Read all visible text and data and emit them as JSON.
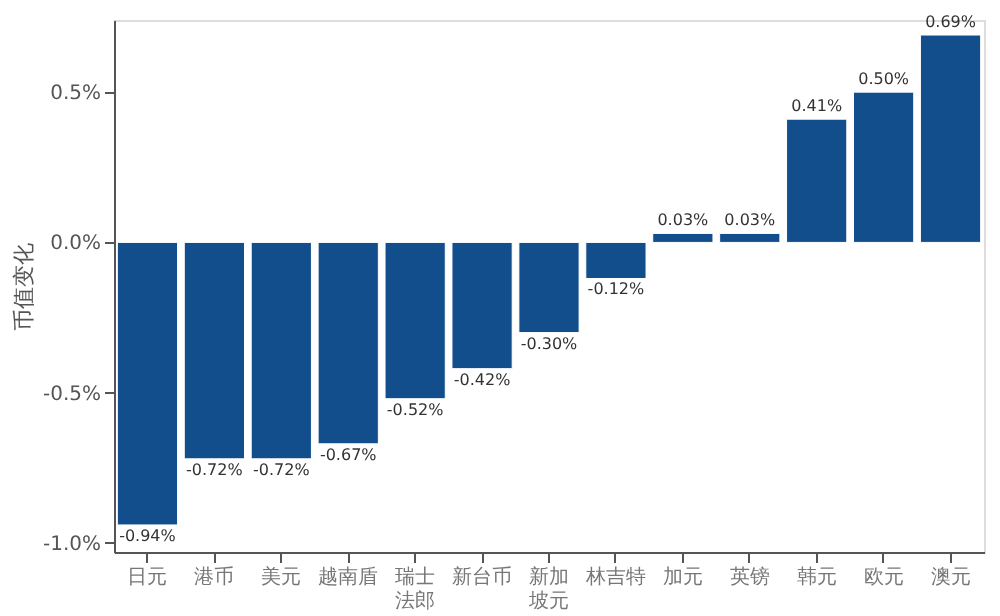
{
  "chart_data": {
    "type": "bar",
    "ylabel": "币值变化",
    "categories": [
      "日元",
      "港币",
      "美元",
      "越南盾",
      "瑞士法郎",
      "新台币",
      "新加坡元",
      "林吉特",
      "加元",
      "英镑",
      "韩元",
      "欧元",
      "澳元"
    ],
    "values": [
      -0.94,
      -0.72,
      -0.72,
      -0.67,
      -0.52,
      -0.42,
      -0.3,
      -0.12,
      0.03,
      0.03,
      0.41,
      0.5,
      0.69
    ],
    "value_labels": [
      "-0.94%",
      "-0.72%",
      "-0.72%",
      "-0.67%",
      "-0.52%",
      "-0.42%",
      "-0.30%",
      "-0.12%",
      "0.03%",
      "0.03%",
      "0.41%",
      "0.50%",
      "0.69%"
    ],
    "color": "#124e8c",
    "ylim": [
      -1.03,
      0.74
    ],
    "yticks": [
      {
        "value": -1.0,
        "label": "-1.0%"
      },
      {
        "value": -0.5,
        "label": "-0.5%"
      },
      {
        "value": 0.0,
        "label": "0.0%"
      },
      {
        "value": 0.5,
        "label": "0.5%"
      }
    ],
    "grid": false
  }
}
